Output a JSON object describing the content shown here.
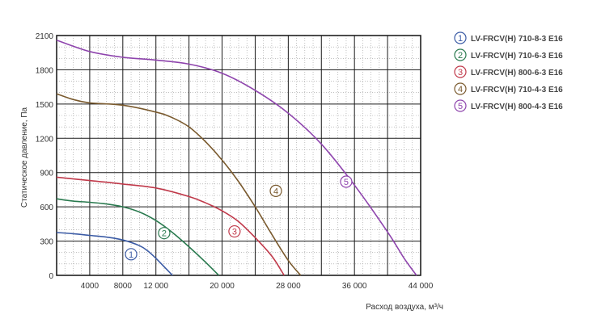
{
  "chart_data": {
    "type": "line",
    "title": "",
    "xlabel": "Расход воздуха, м³/ч",
    "ylabel": "Статическое давление, Па",
    "xlim": [
      0,
      44000
    ],
    "ylim": [
      0,
      2100
    ],
    "x_ticks": [
      4000,
      8000,
      12000,
      20000,
      28000,
      36000,
      44000
    ],
    "x_tick_labels": [
      "4000",
      "8000",
      "12 000",
      "20 000",
      "28 000",
      "36 000",
      "44 000"
    ],
    "y_ticks": [
      0,
      300,
      600,
      900,
      1200,
      1500,
      1800,
      2100
    ],
    "y_tick_labels": [
      "0",
      "300",
      "600",
      "900",
      "1200",
      "1500",
      "1800",
      "2100"
    ],
    "grid": true,
    "legend_position": "right",
    "series": [
      {
        "name": "LV-FRCV(H) 710-8-3 E16",
        "marker_label": "1",
        "color": "#3b5ba5",
        "marker_at": [
          9000,
          185
        ],
        "points": [
          [
            0,
            375
          ],
          [
            2000,
            365
          ],
          [
            4000,
            350
          ],
          [
            6000,
            335
          ],
          [
            8000,
            310
          ],
          [
            10000,
            260
          ],
          [
            11000,
            215
          ],
          [
            12000,
            150
          ],
          [
            13000,
            75
          ],
          [
            14000,
            0
          ]
        ]
      },
      {
        "name": "LV-FRCV(H) 710-6-3 E16",
        "marker_label": "2",
        "color": "#2a7a4f",
        "marker_at": [
          13000,
          370
        ],
        "points": [
          [
            0,
            670
          ],
          [
            2000,
            650
          ],
          [
            4000,
            640
          ],
          [
            6000,
            625
          ],
          [
            8000,
            600
          ],
          [
            10000,
            555
          ],
          [
            12000,
            480
          ],
          [
            14000,
            375
          ],
          [
            16000,
            250
          ],
          [
            18000,
            115
          ],
          [
            19600,
            0
          ]
        ]
      },
      {
        "name": "LV-FRCV(H) 800-6-3 E16",
        "marker_label": "3",
        "color": "#c0394a",
        "marker_at": [
          21500,
          385
        ],
        "points": [
          [
            0,
            860
          ],
          [
            4000,
            830
          ],
          [
            8000,
            800
          ],
          [
            12000,
            765
          ],
          [
            16000,
            690
          ],
          [
            18000,
            635
          ],
          [
            20000,
            565
          ],
          [
            22000,
            470
          ],
          [
            24000,
            330
          ],
          [
            26000,
            170
          ],
          [
            27500,
            0
          ]
        ]
      },
      {
        "name": "LV-FRCV(H) 710-4-3 E16",
        "marker_label": "4",
        "color": "#7a5a2e",
        "marker_at": [
          26500,
          740
        ],
        "points": [
          [
            0,
            1590
          ],
          [
            2000,
            1540
          ],
          [
            4000,
            1510
          ],
          [
            8000,
            1490
          ],
          [
            12000,
            1430
          ],
          [
            14000,
            1380
          ],
          [
            16000,
            1300
          ],
          [
            18000,
            1170
          ],
          [
            20000,
            1010
          ],
          [
            22000,
            820
          ],
          [
            24000,
            600
          ],
          [
            26000,
            360
          ],
          [
            28000,
            130
          ],
          [
            29500,
            0
          ]
        ]
      },
      {
        "name": "LV-FRCV(H) 800-4-3 E16",
        "marker_label": "5",
        "color": "#8e44ad",
        "marker_at": [
          35000,
          820
        ],
        "points": [
          [
            0,
            2060
          ],
          [
            4000,
            1960
          ],
          [
            8000,
            1910
          ],
          [
            12000,
            1885
          ],
          [
            16000,
            1850
          ],
          [
            20000,
            1770
          ],
          [
            24000,
            1620
          ],
          [
            28000,
            1420
          ],
          [
            32000,
            1150
          ],
          [
            36000,
            790
          ],
          [
            40000,
            380
          ],
          [
            42000,
            150
          ],
          [
            43500,
            0
          ]
        ]
      }
    ]
  }
}
